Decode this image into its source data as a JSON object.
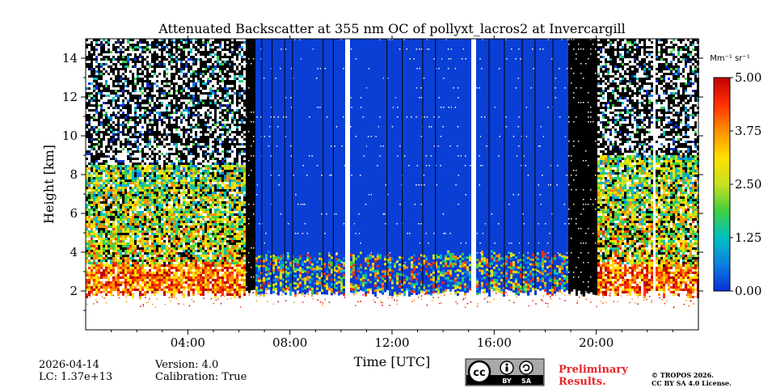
{
  "chart_data": {
    "type": "heatmap",
    "title": "Attenuated Backscatter at 355 nm OC of pollyxt_lacros2 at Invercargill",
    "xlabel": "Time [UTC]",
    "ylabel": "Height [km]",
    "xlim_hours": [
      0,
      24
    ],
    "ylim_km": [
      0,
      15
    ],
    "x_ticks": [
      {
        "hour": 4,
        "label": "04:00"
      },
      {
        "hour": 8,
        "label": "08:00"
      },
      {
        "hour": 12,
        "label": "12:00"
      },
      {
        "hour": 16,
        "label": "16:00"
      },
      {
        "hour": 20,
        "label": "20:00"
      }
    ],
    "x_minor_hours": [
      1,
      2,
      3,
      5,
      6,
      7,
      9,
      10,
      11,
      13,
      14,
      15,
      17,
      18,
      19,
      21,
      22,
      23
    ],
    "y_ticks": [
      {
        "km": 2,
        "label": "2"
      },
      {
        "km": 4,
        "label": "4"
      },
      {
        "km": 6,
        "label": "6"
      },
      {
        "km": 8,
        "label": "8"
      },
      {
        "km": 10,
        "label": "10"
      },
      {
        "km": 12,
        "label": "12"
      },
      {
        "km": 14,
        "label": "14"
      }
    ],
    "colorbar": {
      "unit_label": "Mm⁻¹ sr⁻¹",
      "min": 0,
      "max": 5,
      "ticks": [
        {
          "value": 0.0,
          "label": "0.00"
        },
        {
          "value": 1.25,
          "label": "1.25"
        },
        {
          "value": 2.5,
          "label": "2.50"
        },
        {
          "value": 3.75,
          "label": "3.75"
        },
        {
          "value": 5.0,
          "label": "5.00"
        }
      ],
      "colors": [
        "#0a2fd8",
        "#0a80e0",
        "#00c0c0",
        "#40d040",
        "#c8e020",
        "#ffe000",
        "#ff9000",
        "#ff3000",
        "#c00000"
      ]
    },
    "regions": [
      {
        "start_h": 0.0,
        "end_h": 6.2,
        "kind": "noisy",
        "signal_top_km": 8.5
      },
      {
        "start_h": 6.2,
        "end_h": 6.6,
        "kind": "dark",
        "signal_top_km": 15
      },
      {
        "start_h": 6.6,
        "end_h": 18.9,
        "kind": "blue",
        "signal_top_km": 15
      },
      {
        "start_h": 18.9,
        "end_h": 20.0,
        "kind": "dark",
        "signal_top_km": 15
      },
      {
        "start_h": 20.0,
        "end_h": 24.0,
        "kind": "noisy",
        "signal_top_km": 9.0
      }
    ],
    "data_gaps_hours": [
      [
        10.15,
        10.3
      ],
      [
        15.1,
        15.25
      ],
      [
        22.15,
        22.3
      ]
    ],
    "boundary_layer_top_km": 1.9
  },
  "footer": {
    "date": "2026-04-14",
    "lc": "LC: 1.37e+13",
    "version": "Version: 4.0",
    "calibration": "Calibration: True",
    "license_badge": [
      "BY",
      "SA"
    ],
    "preliminary_line1": "Preliminary",
    "preliminary_line2": "Results.",
    "copyright_line1": "© TROPOS 2026.",
    "copyright_line2": "CC BY SA 4.0 License.",
    "preliminary_color": "#e8232a"
  }
}
